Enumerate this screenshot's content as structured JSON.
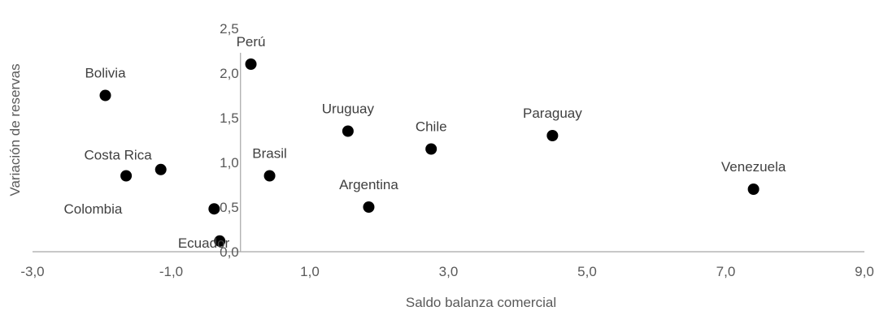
{
  "chart_data": {
    "type": "scatter",
    "title": "",
    "xlabel": "Saldo balanza comercial",
    "ylabel": "Variación de reservas",
    "xlim": [
      -3.0,
      9.0
    ],
    "ylim": [
      0.0,
      2.5
    ],
    "x_ticks": [
      "-3,0",
      "-1,0",
      "1,0",
      "3,0",
      "5,0",
      "7,0",
      "9,0"
    ],
    "x_tick_values": [
      -3,
      -1,
      1,
      3,
      5,
      7,
      9
    ],
    "y_ticks": [
      "0,0",
      "0,5",
      "1,0",
      "1,5",
      "2,0",
      "2,5"
    ],
    "y_tick_values": [
      0,
      0.5,
      1.0,
      1.5,
      2.0,
      2.5
    ],
    "grid": false,
    "legend": "none",
    "marker_color": "#000000",
    "points": [
      {
        "label": "Perú",
        "x": 0.15,
        "y": 2.1,
        "label_pos": "above"
      },
      {
        "label": "Bolivia",
        "x": -1.95,
        "y": 1.75,
        "label_pos": "above"
      },
      {
        "label": "Uruguay",
        "x": 1.55,
        "y": 1.35,
        "label_pos": "above"
      },
      {
        "label": "Chile",
        "x": 2.75,
        "y": 1.15,
        "label_pos": "above"
      },
      {
        "label": "Paraguay",
        "x": 4.5,
        "y": 1.3,
        "label_pos": "above"
      },
      {
        "label": "Costa Rica",
        "x": -1.65,
        "y": 0.85,
        "label_pos": "above-right"
      },
      {
        "label": "",
        "x": -1.15,
        "y": 0.92,
        "label_pos": "none"
      },
      {
        "label": "Brasil",
        "x": 0.42,
        "y": 0.85,
        "label_pos": "above"
      },
      {
        "label": "Argentina",
        "x": 1.85,
        "y": 0.5,
        "label_pos": "above"
      },
      {
        "label": "Venezuela",
        "x": 7.4,
        "y": 0.7,
        "label_pos": "above"
      },
      {
        "label": "Colombia",
        "x": -0.38,
        "y": 0.48,
        "label_pos": "left"
      },
      {
        "label": "Ecuador",
        "x": -0.3,
        "y": 0.12,
        "label_pos": "left"
      }
    ]
  }
}
